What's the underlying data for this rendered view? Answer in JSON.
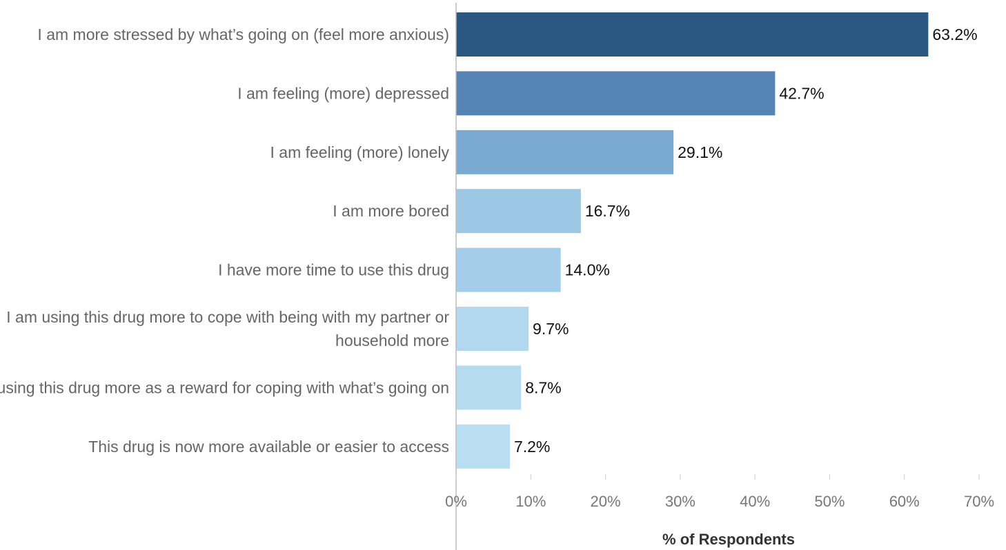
{
  "chart_data": {
    "type": "bar",
    "orientation": "horizontal",
    "categories": [
      [
        "I am more stressed by what’s going on (feel more anxious)"
      ],
      [
        "I am feeling (more) depressed"
      ],
      [
        "I am feeling (more) lonely"
      ],
      [
        "I am more bored"
      ],
      [
        "I have more time to use this drug"
      ],
      [
        "I am using this drug more to cope with being with my partner or",
        "household more"
      ],
      [
        "I am using this drug more as a reward for coping with what’s going on"
      ],
      [
        "This drug is now more available or easier to access"
      ]
    ],
    "values": [
      63.2,
      42.7,
      29.1,
      16.7,
      14.0,
      9.7,
      8.7,
      7.2
    ],
    "value_labels": [
      "63.2%",
      "42.7%",
      "29.1%",
      "16.7%",
      "14.0%",
      "9.7%",
      "8.7%",
      "7.2%"
    ],
    "bar_colors": [
      "#2b5783",
      "#5584b4",
      "#7aaacf",
      "#9dc8e5",
      "#a3cde9",
      "#b2d8f0",
      "#b5dbf1",
      "#b9def3"
    ],
    "xlabel": "% of Respondents",
    "xlim": [
      0,
      70
    ],
    "xticks": [
      0,
      10,
      20,
      30,
      40,
      50,
      60,
      70
    ],
    "xtick_labels": [
      "0%",
      "10%",
      "20%",
      "30%",
      "40%",
      "50%",
      "60%",
      "70%"
    ],
    "grid": false,
    "legend": "none"
  }
}
